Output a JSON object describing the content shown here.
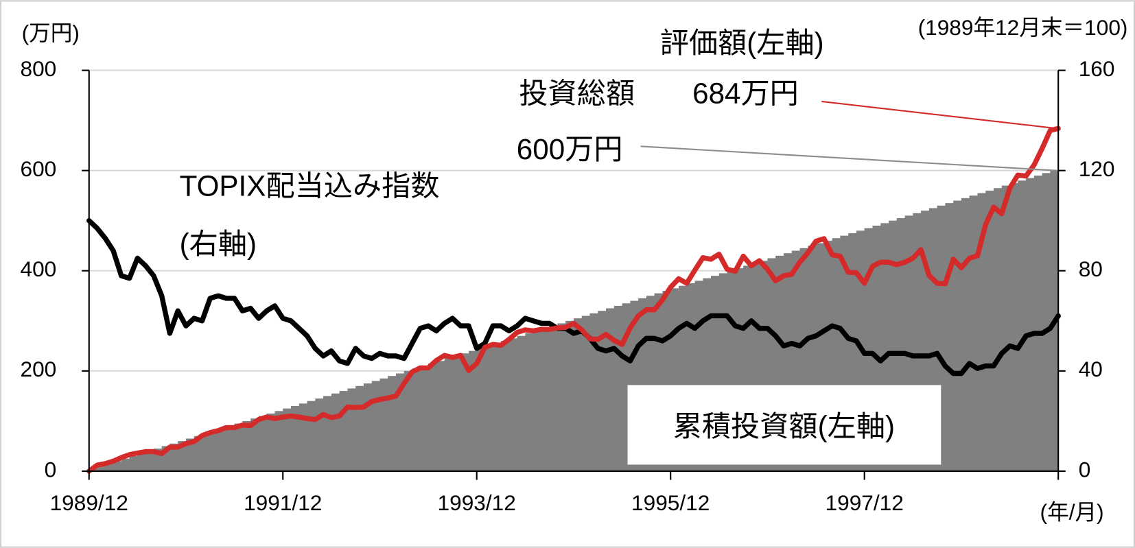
{
  "chart_data": {
    "type": "line",
    "ylabel": "(万円)",
    "y2label": "(1989年12月末＝100)",
    "xlabel": "(年/月)",
    "x": [
      "1989/12",
      "1990/01",
      "1990/02",
      "1990/03",
      "1990/04",
      "1990/05",
      "1990/06",
      "1990/07",
      "1990/08",
      "1990/09",
      "1990/10",
      "1990/11",
      "1990/12",
      "1991/01",
      "1991/02",
      "1991/03",
      "1991/04",
      "1991/05",
      "1991/06",
      "1991/07",
      "1991/08",
      "1991/09",
      "1991/10",
      "1991/11",
      "1991/12",
      "1992/01",
      "1992/02",
      "1992/03",
      "1992/04",
      "1992/05",
      "1992/06",
      "1992/07",
      "1992/08",
      "1992/09",
      "1992/10",
      "1992/11",
      "1992/12",
      "1993/01",
      "1993/02",
      "1993/03",
      "1993/04",
      "1993/05",
      "1993/06",
      "1993/07",
      "1993/08",
      "1993/09",
      "1993/10",
      "1993/11",
      "1993/12",
      "1994/01",
      "1994/02",
      "1994/03",
      "1994/04",
      "1994/05",
      "1994/06",
      "1994/07",
      "1994/08",
      "1994/09",
      "1994/10",
      "1994/11",
      "1994/12",
      "1995/01",
      "1995/02",
      "1995/03",
      "1995/04",
      "1995/05",
      "1995/06",
      "1995/07",
      "1995/08",
      "1995/09",
      "1995/10",
      "1995/11",
      "1995/12",
      "1996/01",
      "1996/02",
      "1996/03",
      "1996/04",
      "1996/05",
      "1996/06",
      "1996/07",
      "1996/08",
      "1996/09",
      "1996/10",
      "1996/11",
      "1996/12",
      "1997/01",
      "1997/02",
      "1997/03",
      "1997/04",
      "1997/05",
      "1997/06",
      "1997/07",
      "1997/08",
      "1997/09",
      "1997/10",
      "1997/11",
      "1997/12",
      "1998/01",
      "1998/02",
      "1998/03",
      "1998/04",
      "1998/05",
      "1998/06",
      "1998/07",
      "1998/08",
      "1998/09",
      "1998/10",
      "1998/11",
      "1998/12",
      "1999/01",
      "1999/02",
      "1999/03",
      "1999/04",
      "1999/05",
      "1999/06",
      "1999/07",
      "1999/08",
      "1999/09",
      "1999/10",
      "1999/11",
      "1999/12"
    ],
    "xticks": [
      "1989/12",
      "1991/12",
      "1993/12",
      "1995/12",
      "1997/12"
    ],
    "ylim": [
      0,
      800
    ],
    "yticks": [
      0,
      200,
      400,
      600,
      800
    ],
    "y2lim": [
      0,
      160
    ],
    "y2ticks": [
      0,
      40,
      80,
      120,
      160
    ],
    "grid": true,
    "series": [
      {
        "name": "累積投資額(左軸)",
        "style": "step-area",
        "color": "#808080",
        "values": [
          0,
          5,
          10,
          15,
          20,
          25,
          30,
          35,
          40,
          45,
          50,
          55,
          60,
          65,
          70,
          75,
          80,
          85,
          90,
          95,
          100,
          105,
          110,
          115,
          120,
          125,
          130,
          135,
          140,
          145,
          150,
          155,
          160,
          165,
          170,
          175,
          180,
          185,
          190,
          195,
          200,
          205,
          210,
          215,
          220,
          225,
          230,
          235,
          240,
          245,
          250,
          255,
          260,
          265,
          270,
          275,
          280,
          285,
          290,
          295,
          300,
          305,
          310,
          315,
          320,
          325,
          330,
          335,
          340,
          345,
          350,
          355,
          360,
          365,
          370,
          375,
          380,
          385,
          390,
          395,
          400,
          405,
          410,
          415,
          420,
          425,
          430,
          435,
          440,
          445,
          450,
          455,
          460,
          465,
          470,
          475,
          480,
          485,
          490,
          495,
          500,
          505,
          510,
          515,
          520,
          525,
          530,
          535,
          540,
          545,
          550,
          555,
          560,
          565,
          570,
          575,
          580,
          585,
          590,
          595,
          600
        ]
      },
      {
        "name": "評価額(左軸)",
        "color": "#d42a2a",
        "values": [
          0,
          12,
          15,
          20,
          27,
          33,
          36,
          39,
          39,
          35,
          48,
          48,
          55,
          59,
          71,
          77,
          81,
          87,
          87,
          92,
          91,
          103,
          108,
          105,
          108,
          110,
          108,
          105,
          103,
          113,
          107,
          110,
          128,
          127,
          128,
          139,
          143,
          146,
          150,
          175,
          198,
          206,
          206,
          221,
          231,
          227,
          231,
          201,
          215,
          247,
          253,
          251,
          263,
          277,
          282,
          280,
          283,
          283,
          286,
          287,
          295,
          282,
          264,
          263,
          273,
          261,
          253,
          286,
          310,
          322,
          322,
          342,
          367,
          384,
          375,
          401,
          426,
          423,
          433,
          403,
          399,
          429,
          410,
          420,
          403,
          380,
          390,
          393,
          417,
          436,
          459,
          464,
          432,
          429,
          397,
          396,
          375,
          409,
          417,
          417,
          412,
          417,
          425,
          442,
          391,
          375,
          374,
          423,
          406,
          425,
          430,
          492,
          527,
          514,
          565,
          591,
          589,
          611,
          644,
          680,
          684
        ]
      },
      {
        "name": "TOPIX配当込み指数",
        "axis_note": "(右軸)",
        "axis": "y2",
        "color": "#000000",
        "values": [
          100,
          97,
          93,
          88,
          78,
          77,
          85,
          82,
          78,
          70,
          55,
          64,
          58,
          61,
          60,
          69,
          70,
          69,
          69,
          64,
          65,
          61,
          64,
          66,
          61,
          60,
          57,
          54,
          49,
          46,
          48,
          44,
          43,
          49,
          46,
          45,
          47,
          46,
          46,
          45,
          51,
          57,
          58,
          56,
          59,
          61,
          58,
          58,
          49,
          51,
          58,
          58,
          56,
          58,
          61,
          60,
          59,
          59,
          57,
          57,
          55,
          56,
          53,
          49,
          48,
          49,
          46,
          44,
          50,
          53,
          53,
          52,
          54,
          57,
          59,
          57,
          60,
          62,
          62,
          62,
          58,
          57,
          60,
          57,
          57,
          54,
          50,
          51,
          50,
          53,
          54,
          56,
          58,
          57,
          53,
          52,
          47,
          47,
          44,
          47,
          47,
          47,
          46,
          46,
          46,
          47,
          42,
          39,
          39,
          43,
          41,
          42,
          42,
          47,
          50,
          49,
          54,
          55,
          55,
          57,
          62
        ]
      }
    ],
    "annotations": [
      {
        "text": "684万円",
        "color": "#d42a2a"
      },
      {
        "text": "投資総額",
        "color": "#8c8c8c"
      },
      {
        "text": "600万円",
        "color": "#8c8c8c"
      }
    ]
  }
}
